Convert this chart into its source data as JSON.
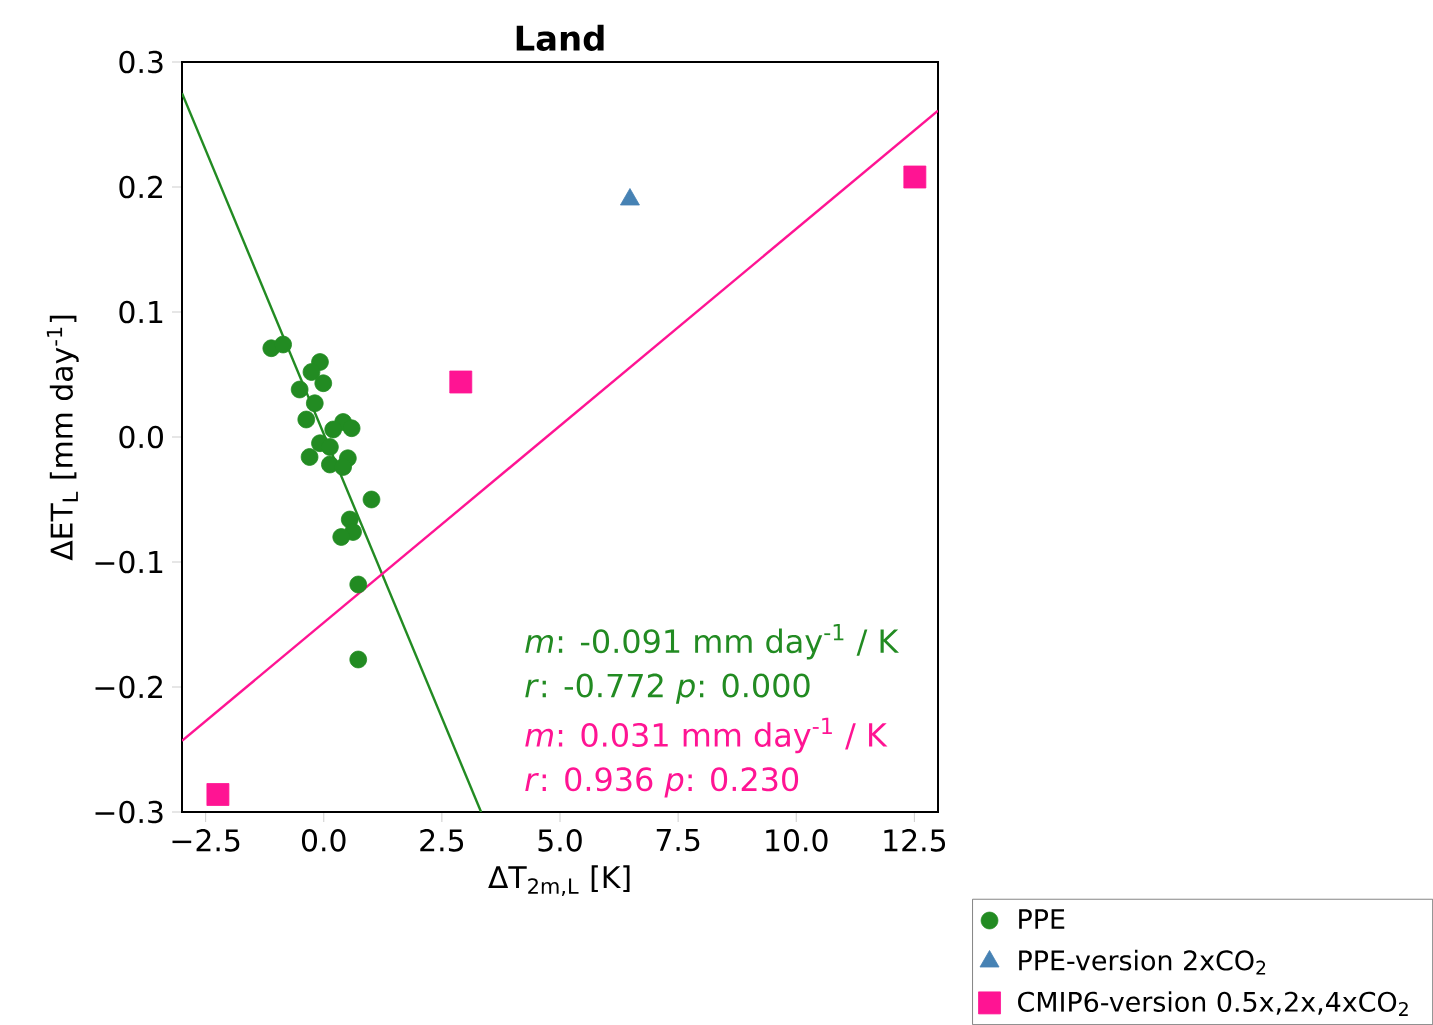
{
  "chart_data": {
    "type": "scatter",
    "title": "Land",
    "xlabel": "ΔT$_{2m,L}$ [K]",
    "ylabel": "ΔET$_{L}$ [mm day$^{-1}$]",
    "xlim": [
      -3,
      13
    ],
    "ylim": [
      -0.3,
      0.3
    ],
    "xticks": [
      {
        "value": -2.5,
        "label": "−2.5"
      },
      {
        "value": 0,
        "label": "0.0"
      },
      {
        "value": 2.5,
        "label": "2.5"
      },
      {
        "value": 5,
        "label": "5.0"
      },
      {
        "value": 7.5,
        "label": "7.5"
      },
      {
        "value": 10,
        "label": "10.0"
      },
      {
        "value": 12.5,
        "label": "12.5"
      }
    ],
    "yticks": [
      {
        "value": -0.3,
        "label": "−0.3"
      },
      {
        "value": -0.2,
        "label": "−0.2"
      },
      {
        "value": -0.1,
        "label": "−0.1"
      },
      {
        "value": 0,
        "label": "0.0"
      },
      {
        "value": 0.1,
        "label": "0.1"
      },
      {
        "value": 0.2,
        "label": "0.2"
      },
      {
        "value": 0.3,
        "label": "0.3"
      }
    ],
    "legend": "bottom right",
    "series": [
      {
        "name": "PPE",
        "marker": "circle",
        "color": "#228b22",
        "x": [
          -1.11,
          -0.86,
          -0.08,
          -0.26,
          -0.01,
          -0.51,
          -0.19,
          -0.37,
          null,
          0.41,
          0.59,
          null,
          0.2,
          -0.08,
          0.13,
          -0.3,
          0.13,
          0.51,
          0.41,
          1.01,
          0.55,
          0.62,
          0.37,
          0.73,
          0.73
        ],
        "values": [
          0.071,
          0.074,
          0.06,
          0.052,
          0.043,
          0.038,
          0.027,
          0.014,
          null,
          0.012,
          0.007,
          null,
          0.006,
          -0.005,
          -0.008,
          -0.016,
          -0.022,
          -0.017,
          -0.024,
          -0.05,
          -0.066,
          -0.076,
          -0.08,
          -0.118,
          -0.178
        ]
      },
      {
        "name": "PPE-version 2xCO$_{2}$",
        "marker": "triangle",
        "color": "#4682b4",
        "x": [
          6.48
        ],
        "values": [
          0.19
        ]
      },
      {
        "name": "CMIP6-version 0.5x,2x,4xCO$_{2}$",
        "marker": "square",
        "color": "#ff1493",
        "x": [
          -2.24,
          2.9,
          12.51
        ],
        "values": [
          -0.286,
          0.044,
          0.208
        ]
      },
      {
        "type": "line",
        "marker": "none",
        "color": "#228b22",
        "x": [
          -3,
          3.33
        ],
        "values": [
          0.275,
          -0.3
        ]
      },
      {
        "type": "line",
        "marker": "none",
        "color": "#ff1493",
        "x": [
          -3,
          13
        ],
        "values": [
          -0.243,
          0.261
        ]
      }
    ],
    "annotations": [
      "*m*: -0.091 mm day$^{-1}$ / K",
      "*r*: -0.772     *p*: 0.000",
      "*m*: 0.031 mm day$^{-1}$ / K",
      "*r*: 0.936     *p*: 0.230"
    ]
  }
}
